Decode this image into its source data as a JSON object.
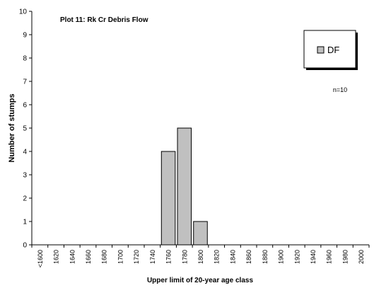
{
  "chart_data": {
    "type": "bar",
    "title": "Plot 11: Rk Cr Debris Flow",
    "x_label": "Upper limit of 20-year age class",
    "y_label": "Number of stumps",
    "annotation": "n=10",
    "categories": [
      "<1600",
      "1620",
      "1640",
      "1660",
      "1680",
      "1700",
      "1720",
      "1740",
      "1760",
      "1780",
      "1800",
      "1820",
      "1840",
      "1860",
      "1880",
      "1900",
      "1920",
      "1940",
      "1960",
      "1980",
      "2000"
    ],
    "series": [
      {
        "name": "DF",
        "color": "#c0c0c0",
        "values": [
          0,
          0,
          0,
          0,
          0,
          0,
          0,
          0,
          4,
          5,
          1,
          0,
          0,
          0,
          0,
          0,
          0,
          0,
          0,
          0,
          0
        ]
      }
    ],
    "ylim": [
      0,
      10
    ],
    "yticks": [
      0,
      1,
      2,
      3,
      4,
      5,
      6,
      7,
      8,
      9,
      10
    ],
    "grid": false,
    "legend": "upper right"
  }
}
